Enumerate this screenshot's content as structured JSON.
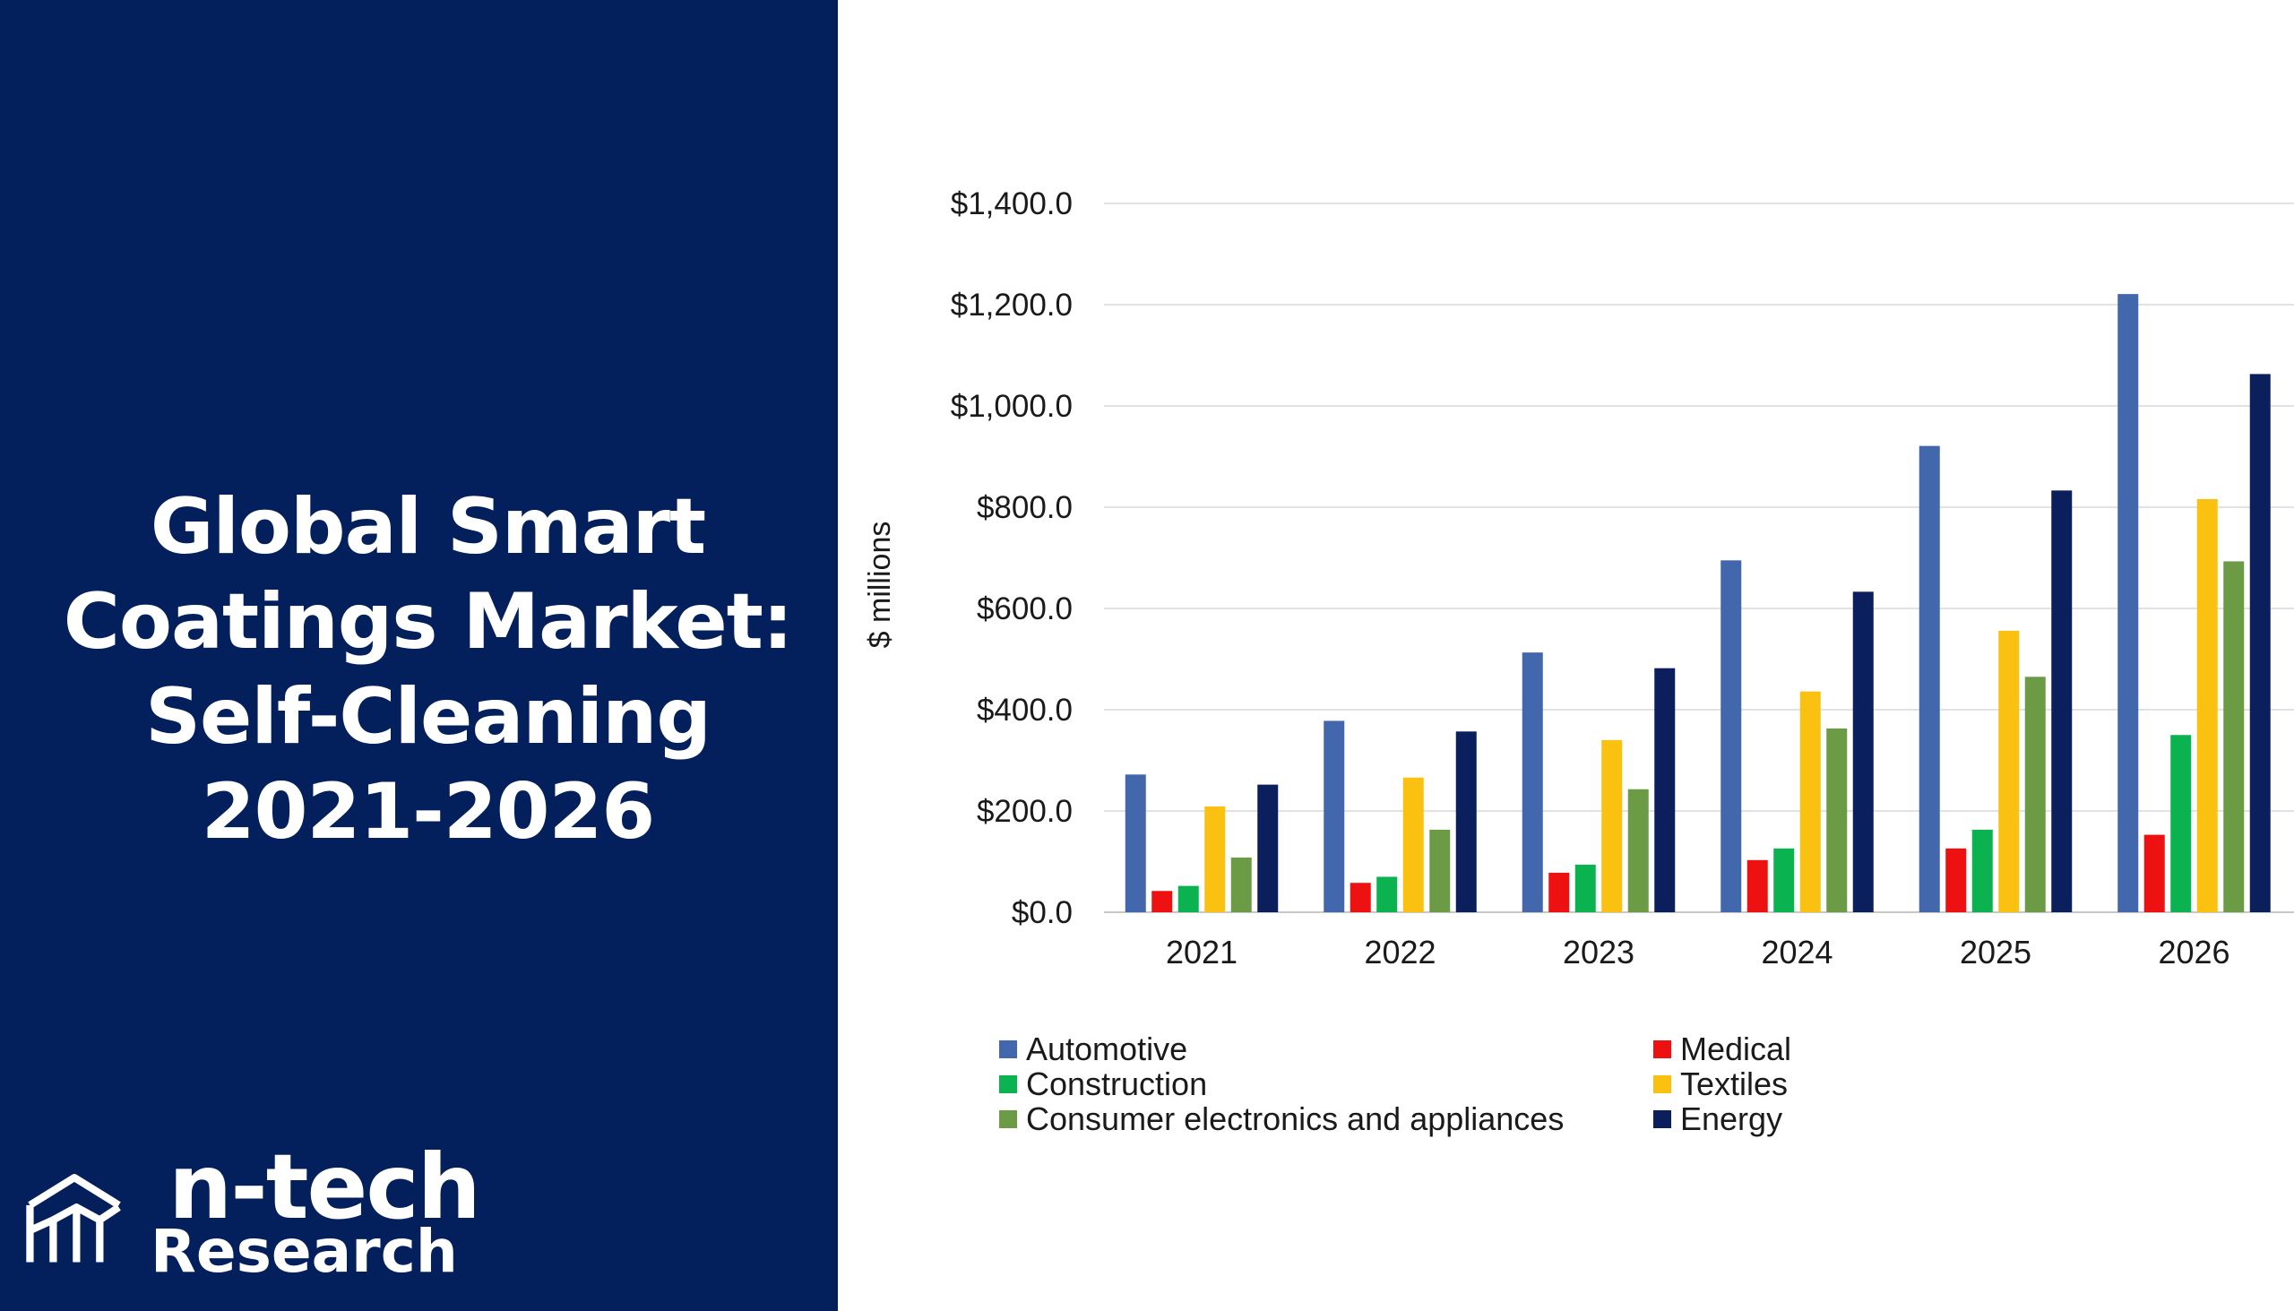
{
  "title_lines": [
    "Global Smart",
    "Coatings Market:",
    "Self-Cleaning",
    "2021-2026"
  ],
  "logo": {
    "word1": "n-tech",
    "word2": "Research"
  },
  "colors": {
    "panel": "#03205d",
    "Automotive": "#4267ac",
    "Medical": "#ee1111",
    "Construction": "#0ab250",
    "Textiles": "#fbc111",
    "Consumer electronics and appliances": "#6b9b44",
    "Energy": "#0b1f5c"
  },
  "chart_data": {
    "type": "bar",
    "title": "",
    "xlabel": "",
    "ylabel": "$ millions",
    "ylim": [
      0,
      1400
    ],
    "yticks": [
      "$0.0",
      "$200.0",
      "$400.0",
      "$600.0",
      "$800.0",
      "$1,000.0",
      "$1,200.0",
      "$1,400.0"
    ],
    "grid": true,
    "legend_position": "bottom",
    "categories": [
      "2021",
      "2022",
      "2023",
      "2024",
      "2025",
      "2026"
    ],
    "series": [
      {
        "name": "Automotive",
        "values": [
          272,
          378,
          513,
          695,
          921,
          1221
        ]
      },
      {
        "name": "Medical",
        "values": [
          42,
          58,
          78,
          103,
          126,
          153
        ]
      },
      {
        "name": "Construction",
        "values": [
          52,
          70,
          94,
          126,
          163,
          350
        ]
      },
      {
        "name": "Textiles",
        "values": [
          209,
          266,
          340,
          436,
          556,
          816
        ]
      },
      {
        "name": "Consumer electronics and appliances",
        "values": [
          108,
          163,
          243,
          363,
          465,
          693
        ]
      },
      {
        "name": "Energy",
        "values": [
          252,
          357,
          482,
          633,
          833,
          1063
        ]
      }
    ]
  }
}
